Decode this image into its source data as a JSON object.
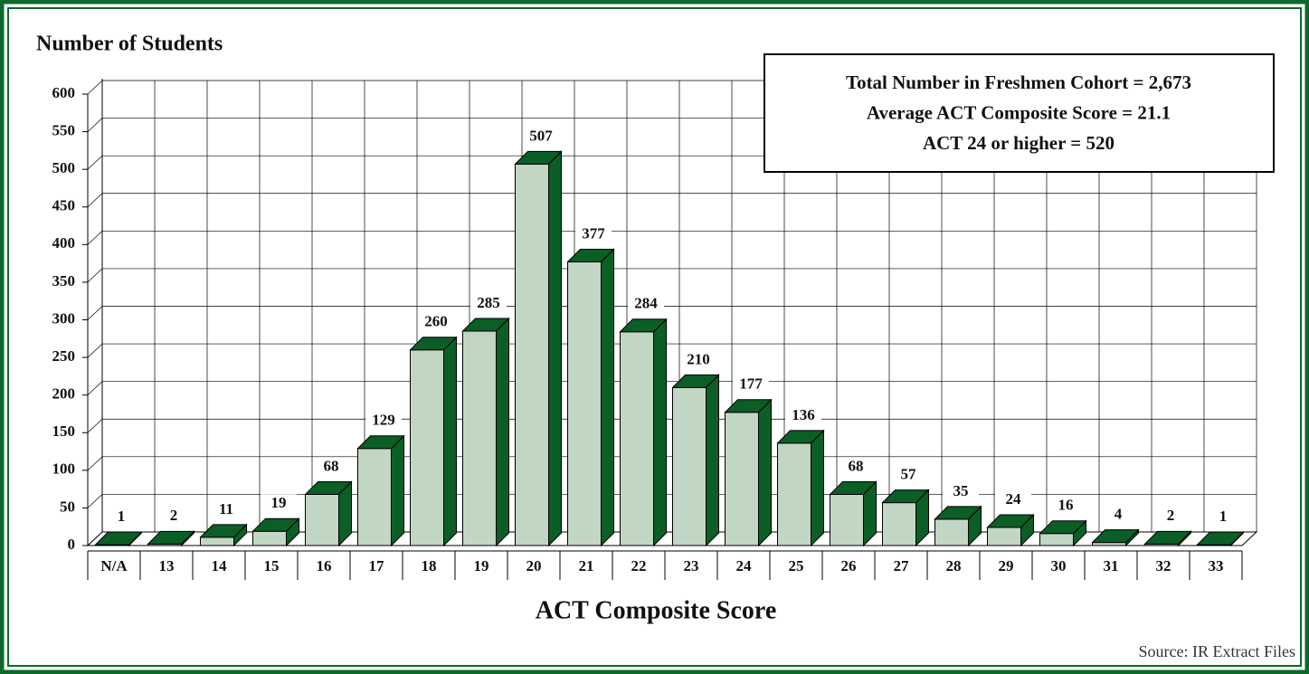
{
  "chart_data": {
    "type": "bar3d",
    "title": "Number of Students",
    "x_label": "ACT Composite Score",
    "categories": [
      "N/A",
      "13",
      "14",
      "15",
      "16",
      "17",
      "18",
      "19",
      "20",
      "21",
      "22",
      "23",
      "24",
      "25",
      "26",
      "27",
      "28",
      "29",
      "30",
      "31",
      "32",
      "33"
    ],
    "values": [
      1,
      2,
      11,
      19,
      68,
      129,
      260,
      285,
      507,
      377,
      284,
      210,
      177,
      136,
      68,
      57,
      35,
      24,
      16,
      4,
      2,
      1
    ],
    "color": "#c2d6c4",
    "top_color": "#0b5e25",
    "ylim": [
      0,
      600
    ],
    "yticks": [
      0,
      50,
      100,
      150,
      200,
      250,
      300,
      350,
      400,
      450,
      500,
      550,
      600
    ],
    "grid": true,
    "annotations": [
      "Total Number in Freshmen Cohort = 2,673",
      "Average ACT Composite Score = 21.1",
      "ACT 24 or higher = 520"
    ],
    "source": "Source:  IR Extract Files"
  }
}
